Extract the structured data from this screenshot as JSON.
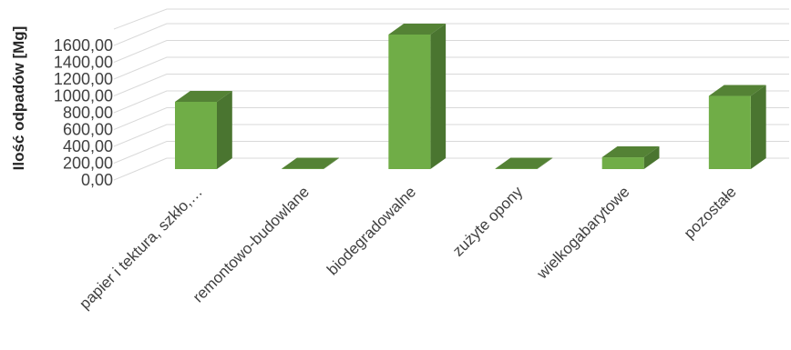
{
  "chart_data": {
    "type": "bar",
    "style": "3d-column",
    "categories": [
      "papier i tektura, szkło,…",
      "remontowo-budowlane",
      "biodegradowalne",
      "zużyte opony",
      "wielkogabarytowe",
      "pozostałe"
    ],
    "values": [
      800,
      5,
      1600,
      5,
      140,
      870
    ],
    "ylabel": "Ilość odpadów [Mg]",
    "yticks": [
      "0,00",
      "200,00",
      "400,00",
      "600,00",
      "800,00",
      "1000,00",
      "1200,00",
      "1400,00",
      "1600,00"
    ],
    "ylim": [
      0,
      1600
    ],
    "grid": true,
    "legend": "none",
    "colors": {
      "bar_front": "#70ad47",
      "bar_top": "#548235",
      "bar_side": "#4a7530",
      "grid": "#d9d9d9"
    }
  }
}
